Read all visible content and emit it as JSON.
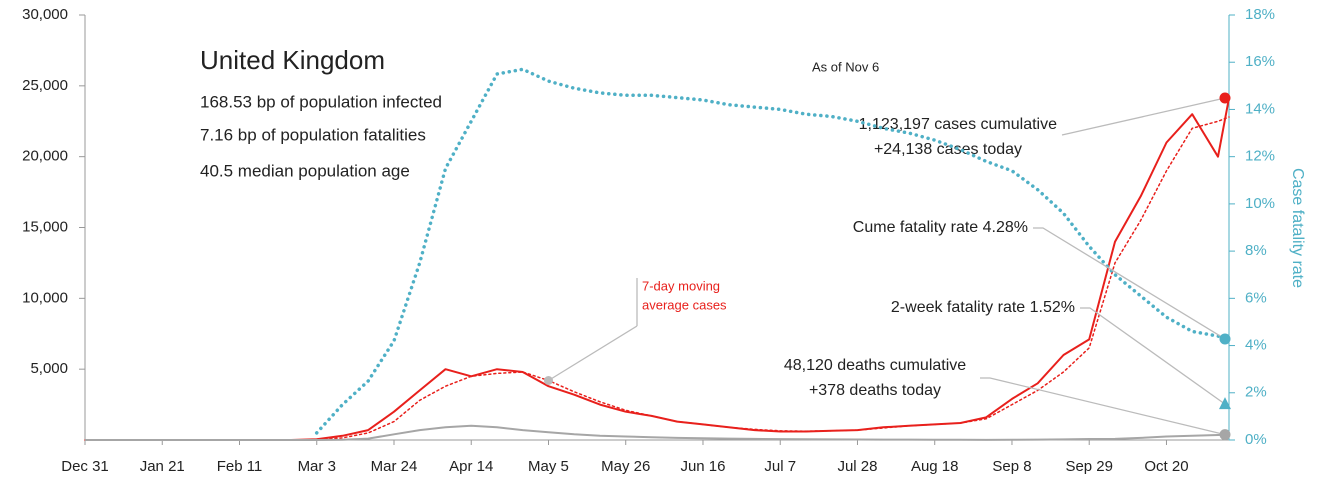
{
  "chart_data": {
    "type": "line",
    "title": "United Kingdom",
    "subtitle_lines": [
      "168.53 bp of population infected",
      "7.16 bp of population fatalities",
      "40.5 median population age"
    ],
    "as_of": "As of Nov 6",
    "y2_label": "Case fatality rate",
    "x": [
      0,
      7,
      14,
      21,
      28,
      35,
      42,
      49,
      56,
      63,
      70,
      77,
      84,
      91,
      98,
      105,
      112,
      119,
      126,
      133,
      140,
      147,
      154,
      161,
      168,
      175,
      182,
      189,
      196,
      203,
      210,
      217,
      224,
      231,
      238,
      245,
      252,
      259,
      266,
      273,
      280,
      287,
      294,
      301,
      308,
      311
    ],
    "xlim": [
      0,
      311
    ],
    "xticks": [
      {
        "value": 0,
        "label": "Dec 31"
      },
      {
        "value": 21,
        "label": "Jan 21"
      },
      {
        "value": 42,
        "label": "Feb 11"
      },
      {
        "value": 63,
        "label": "Mar 3"
      },
      {
        "value": 84,
        "label": "Mar 24"
      },
      {
        "value": 105,
        "label": "Apr 14"
      },
      {
        "value": 126,
        "label": "May 5"
      },
      {
        "value": 147,
        "label": "May 26"
      },
      {
        "value": 168,
        "label": "Jun 16"
      },
      {
        "value": 189,
        "label": "Jul 7"
      },
      {
        "value": 210,
        "label": "Jul 28"
      },
      {
        "value": 231,
        "label": "Aug 18"
      },
      {
        "value": 252,
        "label": "Sep 8"
      },
      {
        "value": 273,
        "label": "Sep 29"
      },
      {
        "value": 294,
        "label": "Oct 20"
      }
    ],
    "ylim": [
      0,
      30000
    ],
    "yticks": [
      {
        "value": 5000,
        "label": "5,000"
      },
      {
        "value": 10000,
        "label": "10,000"
      },
      {
        "value": 15000,
        "label": "15,000"
      },
      {
        "value": 20000,
        "label": "20,000"
      },
      {
        "value": 25000,
        "label": "25,000"
      },
      {
        "value": 30000,
        "label": "30,000"
      }
    ],
    "y2lim": [
      0,
      18
    ],
    "y2ticks": [
      {
        "value": 0,
        "label": "0%"
      },
      {
        "value": 2,
        "label": "2%"
      },
      {
        "value": 4,
        "label": "4%"
      },
      {
        "value": 6,
        "label": "6%"
      },
      {
        "value": 8,
        "label": "8%"
      },
      {
        "value": 10,
        "label": "10%"
      },
      {
        "value": 12,
        "label": "12%"
      },
      {
        "value": 14,
        "label": "14%"
      },
      {
        "value": 16,
        "label": "16%"
      },
      {
        "value": 18,
        "label": "18%"
      }
    ],
    "series": [
      {
        "color": "#e8201c",
        "style": "solid",
        "values": [
          0,
          0,
          0,
          0,
          0,
          0,
          0,
          0,
          0,
          50,
          300,
          700,
          2000,
          3500,
          5000,
          4500,
          5000,
          4800,
          3800,
          3200,
          2500,
          2000,
          1700,
          1300,
          1100,
          900,
          700,
          600,
          600,
          650,
          700,
          900,
          1000,
          1100,
          1200,
          1600,
          2900,
          4000,
          6000,
          7100,
          14000,
          17200,
          21000,
          23000,
          20000,
          24138
        ]
      },
      {
        "name": [
          "7-day moving",
          "average cases"
        ],
        "color": "#e8201c",
        "style": "dotted",
        "values": [
          0,
          0,
          0,
          0,
          0,
          0,
          0,
          0,
          0,
          20,
          150,
          500,
          1300,
          2800,
          3800,
          4500,
          4700,
          4800,
          4200,
          3400,
          2700,
          2100,
          1700,
          1300,
          1100,
          900,
          750,
          650,
          620,
          650,
          700,
          850,
          1000,
          1100,
          1200,
          1500,
          2500,
          3500,
          4800,
          6500,
          12500,
          15500,
          19000,
          22000,
          22500,
          22800
        ]
      },
      {
        "color": "#a6a6a6",
        "style": "solid",
        "values": [
          0,
          0,
          0,
          0,
          0,
          0,
          0,
          0,
          0,
          0,
          20,
          100,
          400,
          700,
          900,
          1000,
          900,
          700,
          550,
          400,
          300,
          250,
          200,
          150,
          120,
          100,
          80,
          60,
          50,
          40,
          35,
          30,
          25,
          20,
          15,
          10,
          15,
          25,
          40,
          70,
          80,
          150,
          250,
          300,
          350,
          378
        ]
      },
      {
        "color": "#4fb0c6",
        "style": "dotted",
        "axis": "y2",
        "values": [
          null,
          null,
          null,
          null,
          null,
          null,
          null,
          null,
          null,
          0.3,
          1.5,
          2.5,
          4.2,
          7.5,
          11.5,
          13.5,
          15.5,
          15.7,
          15.2,
          14.9,
          14.7,
          14.6,
          14.6,
          14.5,
          14.4,
          14.2,
          14.1,
          14.0,
          13.8,
          13.7,
          13.5,
          13.2,
          13.0,
          12.7,
          12.3,
          11.8,
          11.4,
          10.6,
          9.6,
          8.2,
          7.0,
          6.1,
          5.2,
          4.6,
          4.4,
          4.28
        ]
      }
    ],
    "two_week_fatality_rate": 1.52,
    "annotations": {
      "cases": [
        "1,123,197 cases cumulative",
        "+24,138 cases today"
      ],
      "cume_rate": "Cume fatality rate 4.28%",
      "two_week_rate": "2-week fatality rate 1.52%",
      "deaths": [
        "48,120 deaths cumulative",
        "+378 deaths today"
      ]
    }
  }
}
